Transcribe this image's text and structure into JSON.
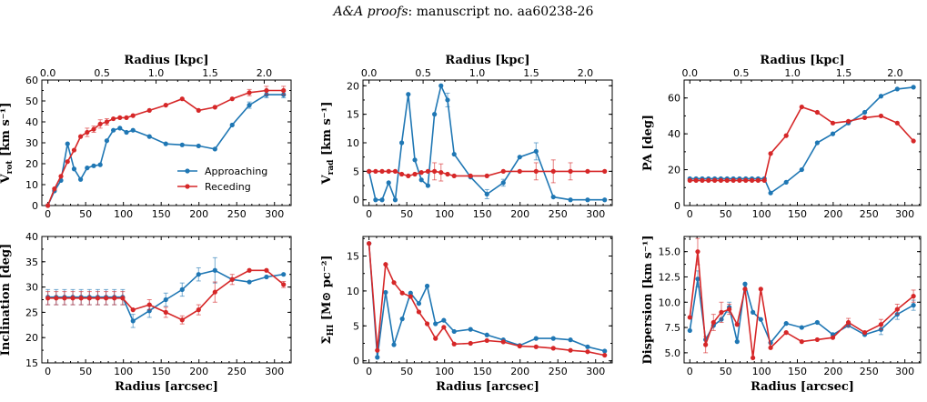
{
  "header": {
    "journal": "A&A proofs",
    "rest": ": manuscript no. aa60238-26"
  },
  "colors": {
    "approaching": "#1f77b4",
    "receding": "#d62728"
  },
  "chart_data": [
    {
      "id": "vrot",
      "type": "line",
      "ylabel_main": "V",
      "ylabel_sub": "rot",
      "ylabel_tail": " [km s⁻¹]",
      "xlim": [
        -8,
        322
      ],
      "ylim": [
        0,
        60
      ],
      "yticks": [
        0,
        10,
        20,
        30,
        40,
        50,
        60
      ],
      "xticks": [
        0,
        50,
        100,
        150,
        200,
        250,
        300
      ],
      "top_axis": {
        "label": "Radius [kpc]",
        "ticks": [
          0.0,
          0.5,
          1.0,
          1.5,
          2.0
        ],
        "tick_labels": [
          "0.0",
          "0.5",
          "1.0",
          "1.5",
          "2.0"
        ],
        "arcsec_per_kpc": 143.2
      },
      "show_xlabel": false,
      "legend": "bottom-right",
      "series": [
        {
          "name": "Approaching",
          "color": "#1f77b4",
          "x": [
            0,
            8.7,
            17.3,
            26,
            34.7,
            43.3,
            52,
            60.7,
            69.3,
            78,
            86.7,
            95.3,
            104,
            112.7,
            134.4,
            156.1,
            177.8,
            199.5,
            221.2,
            244,
            266.7,
            289.4,
            312
          ],
          "y": [
            0,
            7,
            12,
            29.5,
            17.5,
            12.5,
            18,
            19,
            19.5,
            31,
            36,
            37,
            35,
            36,
            33,
            29.5,
            29,
            28.5,
            27,
            38.5,
            48,
            53,
            53
          ],
          "err": [
            0,
            0,
            0,
            0,
            0,
            0,
            0,
            0,
            0,
            0,
            0,
            0,
            0,
            0,
            0,
            0,
            0,
            0,
            0,
            0,
            1.5,
            1.5,
            1.5
          ]
        },
        {
          "name": "Receding",
          "color": "#d62728",
          "x": [
            0,
            8.7,
            17.3,
            26,
            34.7,
            43.3,
            52,
            60.7,
            69.3,
            78,
            86.7,
            95.3,
            104,
            112.7,
            134.4,
            156.1,
            177.8,
            199.5,
            221.2,
            244,
            266.7,
            289.4,
            312
          ],
          "y": [
            0,
            8,
            14,
            21,
            26.5,
            33,
            35,
            36.5,
            39,
            40,
            41.5,
            42,
            42,
            43,
            45.5,
            48,
            51,
            45.5,
            47,
            51,
            54,
            55,
            55
          ],
          "err": [
            0,
            0,
            0,
            0,
            0,
            0,
            2,
            1.5,
            2,
            1.5,
            0,
            0,
            0,
            0,
            0,
            0,
            0,
            0,
            0,
            0,
            1.5,
            2,
            2
          ]
        }
      ]
    },
    {
      "id": "vrad",
      "type": "line",
      "ylabel_main": "V",
      "ylabel_sub": "rad",
      "ylabel_tail": " [km s⁻¹]",
      "xlim": [
        -8,
        322
      ],
      "ylim": [
        -1,
        21
      ],
      "yticks": [
        0,
        5,
        10,
        15,
        20
      ],
      "xticks": [
        0,
        50,
        100,
        150,
        200,
        250,
        300
      ],
      "top_axis": {
        "label": "Radius [kpc]",
        "ticks": [
          0.0,
          0.5,
          1.0,
          1.5,
          2.0
        ],
        "tick_labels": [
          "0.0",
          "0.5",
          "1.0",
          "1.5",
          "2.0"
        ],
        "arcsec_per_kpc": 143.2
      },
      "show_xlabel": false,
      "series": [
        {
          "name": "Approaching",
          "color": "#1f77b4",
          "x": [
            0,
            8.7,
            17.3,
            26,
            34.7,
            43.3,
            52,
            60.7,
            69.3,
            78,
            86.7,
            95.3,
            104,
            112.7,
            134.4,
            156.1,
            177.8,
            199.5,
            221.2,
            244,
            266.7,
            289.4,
            312
          ],
          "y": [
            5,
            0,
            0,
            3,
            0,
            10,
            18.5,
            7,
            3.5,
            2.5,
            15,
            20,
            17.5,
            8,
            4,
            1,
            3,
            7.5,
            8.5,
            0.5,
            0,
            0,
            0
          ],
          "err": [
            0,
            0,
            0,
            0,
            0,
            0,
            0,
            0,
            0,
            0,
            0,
            0,
            1.2,
            0,
            0,
            0.8,
            0.6,
            0,
            1.5,
            0,
            0,
            0,
            0
          ]
        },
        {
          "name": "Receding",
          "color": "#d62728",
          "x": [
            0,
            8.7,
            17.3,
            26,
            34.7,
            43.3,
            52,
            60.7,
            69.3,
            78,
            86.7,
            95.3,
            104,
            112.7,
            134.4,
            156.1,
            177.8,
            199.5,
            221.2,
            244,
            266.7,
            289.4,
            312
          ],
          "y": [
            5,
            5,
            5,
            5,
            5,
            4.5,
            4.2,
            4.5,
            4.8,
            5,
            5,
            4.8,
            4.5,
            4.2,
            4.2,
            4.2,
            5,
            5,
            5,
            5,
            5,
            5,
            5
          ],
          "err": [
            0,
            0,
            0,
            0,
            0,
            0,
            0,
            0,
            0,
            0,
            1.5,
            1.5,
            0,
            0,
            0,
            0,
            0,
            0,
            1.5,
            2,
            1.5,
            0,
            0
          ]
        }
      ]
    },
    {
      "id": "pa",
      "type": "line",
      "ylabel_main": "PA [deg]",
      "ylabel_sub": "",
      "ylabel_tail": "",
      "xlim": [
        -8,
        322
      ],
      "ylim": [
        0,
        70
      ],
      "yticks": [
        0,
        20,
        40,
        60
      ],
      "xticks": [
        0,
        50,
        100,
        150,
        200,
        250,
        300
      ],
      "top_axis": {
        "label": "Radius [kpc]",
        "ticks": [
          0.0,
          0.5,
          1.0,
          1.5,
          2.0
        ],
        "tick_labels": [
          "0.0",
          "0.5",
          "1.0",
          "1.5",
          "2.0"
        ],
        "arcsec_per_kpc": 143.2
      },
      "show_xlabel": false,
      "series": [
        {
          "name": "Approaching",
          "color": "#1f77b4",
          "x": [
            0,
            8.7,
            17.3,
            26,
            34.7,
            43.3,
            52,
            60.7,
            69.3,
            78,
            86.7,
            95.3,
            104,
            112.7,
            134.4,
            156.1,
            177.8,
            199.5,
            221.2,
            244,
            266.7,
            289.4,
            312
          ],
          "y": [
            15,
            15,
            15,
            15,
            15,
            15,
            15,
            15,
            15,
            15,
            15,
            15,
            15,
            7,
            13,
            20,
            35,
            40,
            46,
            52,
            61,
            65,
            66
          ],
          "err": [
            0,
            0,
            0,
            0,
            0,
            0,
            0,
            0,
            0,
            0,
            0,
            0,
            0,
            0,
            0,
            0,
            0,
            0,
            0,
            0,
            0,
            0,
            0
          ]
        },
        {
          "name": "Receding",
          "color": "#d62728",
          "x": [
            0,
            8.7,
            17.3,
            26,
            34.7,
            43.3,
            52,
            60.7,
            69.3,
            78,
            86.7,
            95.3,
            104,
            112.7,
            134.4,
            156.1,
            177.8,
            199.5,
            221.2,
            244,
            266.7,
            289.4,
            312
          ],
          "y": [
            14,
            14,
            14,
            14,
            14,
            14,
            14,
            14,
            14,
            14,
            14,
            14,
            14,
            29,
            39,
            55,
            52,
            46,
            47,
            49,
            50,
            46,
            36
          ],
          "err": [
            0,
            0,
            0,
            0,
            0,
            0,
            0,
            0,
            0,
            0,
            0,
            0,
            0,
            0,
            0,
            0,
            0,
            0,
            0,
            0,
            0,
            0,
            0
          ]
        }
      ]
    },
    {
      "id": "inc",
      "type": "line",
      "ylabel_main": "Inclination [deg]",
      "ylabel_sub": "",
      "ylabel_tail": "",
      "xlim": [
        -8,
        322
      ],
      "ylim": [
        15,
        40
      ],
      "yticks": [
        15,
        20,
        25,
        30,
        35,
        40
      ],
      "xticks": [
        0,
        50,
        100,
        150,
        200,
        250,
        300
      ],
      "top_axis": null,
      "show_xlabel": true,
      "xlabel": "Radius [arcsec]",
      "series": [
        {
          "name": "Approaching",
          "color": "#1f77b4",
          "x": [
            0,
            11,
            22,
            33,
            44,
            55,
            66,
            77,
            88,
            99,
            112.7,
            134.4,
            156.1,
            177.8,
            199.5,
            221.2,
            244,
            266.7,
            289.4,
            312
          ],
          "y": [
            28,
            28,
            28,
            28,
            28,
            28,
            28,
            28,
            28,
            28,
            23.3,
            25.3,
            27.5,
            29.5,
            32.5,
            33.3,
            31.5,
            31,
            32,
            32.5
          ],
          "err": [
            1.5,
            1.5,
            1.5,
            1.5,
            1.5,
            1.5,
            1.5,
            1.5,
            1.5,
            1.5,
            1.3,
            1.3,
            1.3,
            1.3,
            1.3,
            2.5,
            0,
            0,
            0,
            0
          ]
        },
        {
          "name": "Receding",
          "color": "#d62728",
          "x": [
            0,
            11,
            22,
            33,
            44,
            55,
            66,
            77,
            88,
            99,
            112.7,
            134.4,
            156.1,
            177.8,
            199.5,
            221.2,
            244,
            266.7,
            289.4,
            312
          ],
          "y": [
            27.8,
            27.8,
            27.8,
            27.8,
            27.8,
            27.8,
            27.8,
            27.8,
            27.8,
            27.8,
            25.5,
            26.5,
            25,
            23.5,
            25.5,
            29,
            31.5,
            33.3,
            33.3,
            30.5
          ],
          "err": [
            1.3,
            1.3,
            1.3,
            1.3,
            1.3,
            1.3,
            1.3,
            1.3,
            1.3,
            1.3,
            0,
            1,
            1,
            0.8,
            1,
            2,
            1,
            0,
            0,
            0.6
          ]
        }
      ]
    },
    {
      "id": "sigma",
      "type": "line",
      "ylabel_main": "Σ",
      "ylabel_sub": "HI",
      "ylabel_tail": " [M⊙ pc⁻²]",
      "xlim": [
        -8,
        322
      ],
      "ylim": [
        -0.3,
        17.8
      ],
      "yticks": [
        0,
        5,
        10,
        15
      ],
      "xticks": [
        0,
        50,
        100,
        150,
        200,
        250,
        300
      ],
      "top_axis": null,
      "show_xlabel": true,
      "xlabel": "Radius [arcsec]",
      "series": [
        {
          "name": "Approaching",
          "color": "#1f77b4",
          "x": [
            0,
            11,
            22,
            33,
            44,
            55,
            66,
            77,
            88,
            99,
            112.7,
            134.4,
            156.1,
            177.8,
            199.5,
            221.2,
            244,
            266.7,
            289.4,
            312
          ],
          "y": [
            16.8,
            0.5,
            9.8,
            2.3,
            6,
            9.7,
            8.2,
            10.7,
            5.3,
            5.8,
            4.2,
            4.5,
            3.7,
            3,
            2.2,
            3.2,
            3.2,
            3,
            2,
            1.4
          ],
          "err": [
            0,
            0,
            0,
            0,
            0,
            0,
            0,
            0,
            0,
            0,
            0,
            0,
            0,
            0,
            0,
            0,
            0,
            0,
            0,
            0
          ]
        },
        {
          "name": "Receding",
          "color": "#d62728",
          "x": [
            0,
            11,
            22,
            33,
            44,
            55,
            66,
            77,
            88,
            99,
            112.7,
            134.4,
            156.1,
            177.8,
            199.5,
            221.2,
            244,
            266.7,
            289.4,
            312
          ],
          "y": [
            16.8,
            1.5,
            13.8,
            11.2,
            9.7,
            9.2,
            7,
            5.3,
            3.2,
            4.8,
            2.4,
            2.5,
            2.9,
            2.7,
            2.1,
            2,
            1.8,
            1.5,
            1.3,
            0.8
          ],
          "err": [
            0,
            0,
            0,
            0,
            0,
            0,
            0,
            0,
            0,
            0,
            0,
            0,
            0,
            0,
            0,
            0,
            0,
            0,
            0,
            0
          ]
        }
      ]
    },
    {
      "id": "disp",
      "type": "line",
      "ylabel_main": "Dispersion [km s⁻¹]",
      "ylabel_sub": "",
      "ylabel_tail": "",
      "xlim": [
        -8,
        322
      ],
      "ylim": [
        4,
        16.5
      ],
      "yticks": [
        5.0,
        7.5,
        10.0,
        12.5,
        15.0
      ],
      "ytick_labels": [
        "5.0",
        "7.5",
        "10.0",
        "12.5",
        "15.0"
      ],
      "xticks": [
        0,
        50,
        100,
        150,
        200,
        250,
        300
      ],
      "top_axis": null,
      "show_xlabel": true,
      "xlabel": "Radius [arcsec]",
      "series": [
        {
          "name": "Approaching",
          "color": "#1f77b4",
          "x": [
            0,
            11,
            22,
            33,
            44,
            55,
            66,
            77,
            88,
            99,
            112.7,
            134.4,
            156.1,
            177.8,
            199.5,
            221.2,
            244,
            266.7,
            289.4,
            312
          ],
          "y": [
            7.2,
            12.3,
            6.3,
            7.7,
            8.3,
            9.5,
            6.1,
            11.8,
            9,
            8.3,
            6,
            7.9,
            7.5,
            8,
            6.8,
            7.7,
            6.8,
            7.3,
            8.8,
            9.7
          ],
          "err": [
            0,
            0.8,
            0,
            0,
            0,
            0.5,
            0,
            0,
            0,
            0,
            0,
            0,
            0,
            0,
            0,
            0,
            0,
            0.5,
            0.5,
            0.5
          ]
        },
        {
          "name": "Receding",
          "color": "#d62728",
          "x": [
            0,
            11,
            22,
            33,
            44,
            55,
            66,
            77,
            88,
            99,
            112.7,
            134.4,
            156.1,
            177.8,
            199.5,
            221.2,
            244,
            266.7,
            289.4,
            312
          ],
          "y": [
            8.5,
            15,
            5.8,
            8,
            9,
            9.3,
            7.8,
            11.3,
            4.5,
            11.3,
            5.5,
            7,
            6.1,
            6.3,
            6.5,
            8,
            7,
            7.8,
            9.3,
            10.6
          ],
          "err": [
            0,
            1.3,
            0.8,
            0.8,
            1,
            0.5,
            0,
            0,
            0,
            0,
            0,
            0,
            0,
            0,
            0,
            0.4,
            0,
            0.5,
            0.5,
            0.6
          ]
        }
      ]
    }
  ]
}
